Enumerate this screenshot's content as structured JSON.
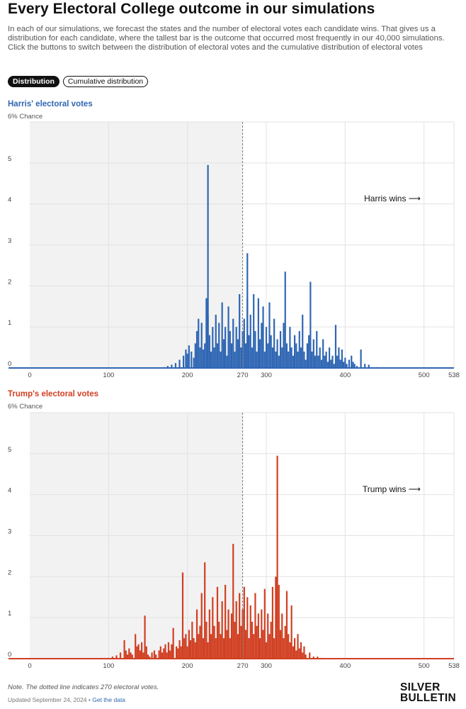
{
  "header": {
    "title": "Every Electoral College outcome in our simulations",
    "intro": "In each of our simulations, we forecast the states and the number of electoral votes each candidate wins. That gives us a distribution for each candidate, where the tallest bar is the outcome that occurred most frequently in our 40,000 simulations. Click the buttons to switch between the distribution of electoral votes and the cumulative distribution of electoral votes"
  },
  "toggles": {
    "distribution_label": "Distribution",
    "cumulative_label": "Cumulative distribution",
    "active": "distribution"
  },
  "colors": {
    "harris": "#2f66b3",
    "trump": "#d13f22",
    "shade": "#f2f2f2"
  },
  "footer": {
    "note": "Note. The dotted line indicates 270 electoral votes.",
    "updated": "Updated September 24, 2024 •",
    "data_link": "Get the data",
    "logo_line1": "SILVER",
    "logo_line2": "BULLETIN"
  },
  "chart_data": [
    {
      "type": "bar",
      "title": "Harris' electoral votes",
      "ylabel": "6% Chance",
      "annotation": "Harris wins ⟶",
      "reference_line": 270,
      "shaded_range": [
        0,
        270
      ],
      "xlim": [
        0,
        538
      ],
      "ylim": [
        0,
        6
      ],
      "x_ticks": [
        0,
        100,
        200,
        270,
        300,
        400,
        500,
        538
      ],
      "y_ticks": [
        0,
        1,
        2,
        3,
        4,
        5
      ],
      "grid": true,
      "x": [
        170,
        175,
        180,
        185,
        190,
        195,
        198,
        200,
        202,
        205,
        208,
        210,
        212,
        214,
        216,
        218,
        220,
        222,
        224,
        226,
        226,
        228,
        230,
        232,
        234,
        236,
        238,
        240,
        242,
        244,
        246,
        248,
        250,
        252,
        254,
        256,
        258,
        260,
        262,
        264,
        266,
        268,
        270,
        272,
        274,
        276,
        276,
        278,
        280,
        282,
        284,
        286,
        288,
        290,
        292,
        294,
        296,
        298,
        300,
        302,
        304,
        306,
        308,
        310,
        312,
        314,
        316,
        318,
        320,
        322,
        324,
        326,
        328,
        330,
        332,
        334,
        336,
        338,
        340,
        342,
        344,
        346,
        348,
        350,
        352,
        354,
        356,
        358,
        360,
        362,
        364,
        366,
        368,
        370,
        372,
        374,
        376,
        378,
        380,
        382,
        384,
        386,
        388,
        390,
        392,
        394,
        396,
        398,
        400,
        402,
        405,
        408,
        410,
        412,
        415,
        420,
        425,
        430,
        440
      ],
      "values": [
        0.02,
        0.05,
        0.08,
        0.12,
        0.2,
        0.3,
        0.45,
        0.35,
        0.55,
        0.4,
        0.25,
        0.6,
        0.9,
        1.2,
        0.5,
        1.1,
        0.45,
        0.6,
        1.7,
        1.3,
        4.95,
        0.8,
        0.4,
        1.0,
        0.5,
        1.3,
        0.6,
        1.1,
        0.4,
        1.6,
        0.7,
        1.0,
        0.3,
        1.5,
        0.9,
        0.6,
        1.2,
        0.4,
        1.0,
        0.7,
        1.8,
        0.5,
        0.9,
        1.2,
        0.6,
        1.7,
        2.8,
        0.8,
        1.3,
        0.5,
        1.8,
        0.9,
        0.4,
        1.7,
        0.7,
        1.1,
        1.5,
        0.4,
        1.0,
        0.6,
        1.6,
        0.8,
        0.5,
        1.2,
        0.4,
        0.7,
        0.3,
        0.9,
        0.5,
        1.1,
        2.35,
        0.6,
        0.4,
        1.0,
        0.5,
        0.3,
        0.8,
        0.6,
        0.4,
        0.9,
        0.5,
        1.3,
        0.4,
        0.2,
        0.6,
        0.8,
        2.1,
        0.4,
        0.7,
        0.3,
        0.9,
        0.3,
        0.5,
        0.2,
        0.7,
        0.3,
        0.4,
        0.15,
        0.5,
        0.2,
        0.3,
        0.1,
        1.05,
        0.3,
        0.5,
        0.2,
        0.45,
        0.15,
        0.25,
        0.1,
        0.2,
        0.3,
        0.15,
        0.1,
        0.05,
        0.45,
        0.1,
        0.08,
        0.02
      ]
    },
    {
      "type": "bar",
      "title": "Trump's electoral votes",
      "ylabel": "6% Chance",
      "annotation": "Trump wins ⟶",
      "reference_line": 270,
      "shaded_range": [
        0,
        270
      ],
      "xlim": [
        0,
        538
      ],
      "ylim": [
        0,
        6
      ],
      "x_ticks": [
        0,
        100,
        200,
        270,
        300,
        400,
        500,
        538
      ],
      "y_ticks": [
        0,
        1,
        2,
        3,
        4,
        5
      ],
      "grid": true,
      "x": [
        100,
        105,
        110,
        115,
        120,
        122,
        124,
        126,
        128,
        130,
        134,
        136,
        138,
        140,
        142,
        144,
        146,
        148,
        150,
        152,
        155,
        158,
        160,
        164,
        166,
        168,
        170,
        172,
        174,
        176,
        178,
        180,
        182,
        186,
        188,
        190,
        192,
        194,
        196,
        198,
        200,
        202,
        204,
        206,
        208,
        210,
        212,
        214,
        216,
        218,
        220,
        222,
        224,
        226,
        228,
        230,
        232,
        234,
        236,
        238,
        240,
        242,
        244,
        246,
        248,
        250,
        252,
        254,
        256,
        258,
        260,
        262,
        264,
        266,
        268,
        270,
        272,
        274,
        276,
        278,
        280,
        282,
        284,
        286,
        288,
        290,
        292,
        294,
        296,
        298,
        300,
        302,
        304,
        306,
        308,
        310,
        312,
        314,
        316,
        318,
        320,
        322,
        324,
        326,
        328,
        330,
        332,
        334,
        336,
        338,
        340,
        342,
        344,
        346,
        348,
        350,
        355,
        360,
        365,
        370,
        380
      ],
      "values": [
        0.02,
        0.05,
        0.08,
        0.15,
        0.45,
        0.2,
        0.1,
        0.25,
        0.15,
        0.1,
        0.6,
        0.3,
        0.35,
        0.2,
        0.4,
        0.15,
        1.05,
        0.3,
        0.1,
        0.05,
        0.15,
        0.2,
        0.1,
        0.2,
        0.3,
        0.15,
        0.25,
        0.35,
        0.15,
        0.4,
        0.2,
        0.35,
        0.75,
        0.3,
        0.25,
        0.45,
        0.3,
        2.1,
        0.5,
        0.6,
        0.3,
        0.7,
        0.45,
        0.9,
        0.5,
        0.4,
        1.2,
        0.6,
        0.8,
        1.6,
        0.5,
        2.35,
        0.9,
        0.4,
        1.2,
        0.6,
        1.5,
        0.8,
        0.5,
        1.75,
        0.9,
        0.6,
        1.4,
        0.5,
        1.8,
        0.7,
        1.2,
        0.5,
        1.1,
        2.8,
        0.9,
        1.4,
        0.6,
        1.6,
        0.8,
        1.2,
        1.75,
        0.7,
        1.5,
        0.5,
        1.3,
        0.9,
        0.6,
        1.6,
        0.8,
        1.1,
        0.5,
        1.2,
        0.7,
        1.7,
        0.4,
        1.1,
        0.6,
        0.9,
        1.75,
        0.5,
        2.0,
        4.95,
        1.8,
        0.7,
        1.1,
        0.5,
        0.8,
        1.65,
        0.6,
        0.4,
        1.3,
        0.3,
        0.5,
        0.2,
        0.6,
        0.25,
        0.4,
        0.15,
        0.3,
        0.1,
        0.15,
        0.05,
        0.05,
        0.02,
        0.01
      ]
    }
  ]
}
